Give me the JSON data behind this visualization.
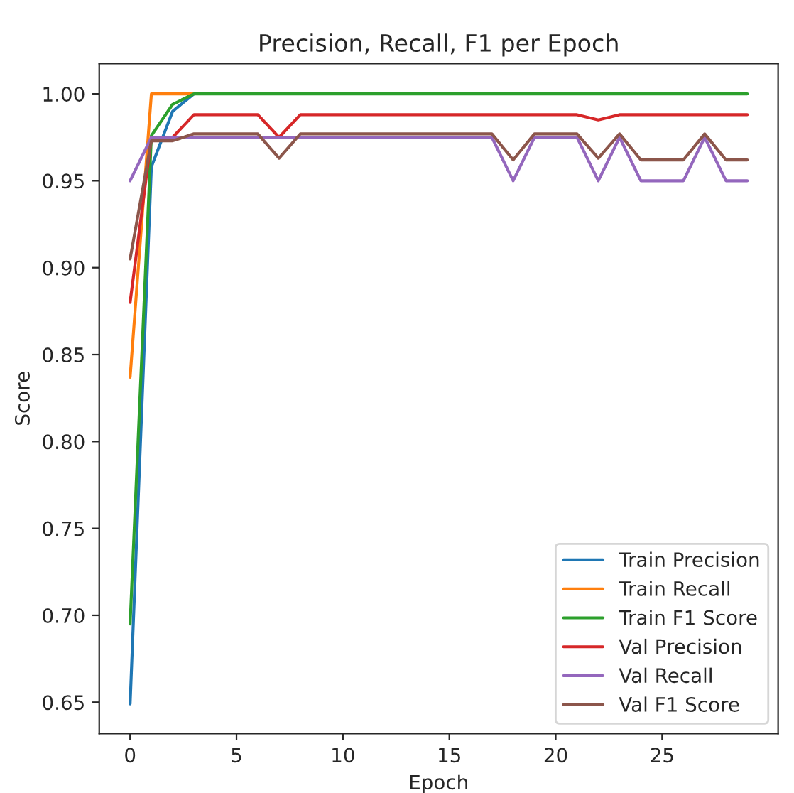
{
  "chart_data": {
    "type": "line",
    "title": "Precision, Recall, F1 per Epoch",
    "xlabel": "Epoch",
    "ylabel": "Score",
    "x": [
      0,
      1,
      2,
      3,
      4,
      5,
      6,
      7,
      8,
      9,
      10,
      11,
      12,
      13,
      14,
      15,
      16,
      17,
      18,
      19,
      20,
      21,
      22,
      23,
      24,
      25,
      26,
      27,
      28,
      29
    ],
    "series": [
      {
        "name": "Train Precision",
        "color": "#1f77b4",
        "values": [
          0.649,
          0.958,
          0.99,
          1.0,
          null,
          null,
          null,
          null,
          null,
          null,
          null,
          null,
          null,
          null,
          null,
          null,
          null,
          null,
          null,
          null,
          null,
          null,
          null,
          null,
          null,
          null,
          null,
          null,
          null,
          null
        ]
      },
      {
        "name": "Train Recall",
        "color": "#ff7f0e",
        "values": [
          0.837,
          1.0,
          1.0,
          1.0,
          null,
          null,
          null,
          null,
          null,
          null,
          null,
          null,
          null,
          null,
          null,
          null,
          null,
          null,
          null,
          null,
          null,
          null,
          null,
          null,
          null,
          null,
          null,
          null,
          null,
          null
        ]
      },
      {
        "name": "Train F1 Score",
        "color": "#2ca02c",
        "values": [
          0.695,
          0.976,
          0.994,
          1.0,
          1.0,
          1.0,
          1.0,
          1.0,
          1.0,
          1.0,
          1.0,
          1.0,
          1.0,
          1.0,
          1.0,
          1.0,
          1.0,
          1.0,
          1.0,
          1.0,
          1.0,
          1.0,
          1.0,
          1.0,
          1.0,
          1.0,
          1.0,
          1.0,
          1.0,
          1.0
        ]
      },
      {
        "name": "Val Precision",
        "color": "#d62728",
        "values": [
          0.88,
          0.975,
          0.975,
          0.988,
          0.988,
          0.988,
          0.988,
          0.975,
          0.988,
          0.988,
          0.988,
          0.988,
          0.988,
          0.988,
          0.988,
          0.988,
          0.988,
          0.988,
          0.988,
          0.988,
          0.988,
          0.988,
          0.985,
          0.988,
          0.988,
          0.988,
          0.988,
          0.988,
          0.988,
          0.988
        ]
      },
      {
        "name": "Val Recall",
        "color": "#9467bd",
        "values": [
          0.95,
          0.975,
          0.975,
          0.975,
          0.975,
          0.975,
          0.975,
          0.975,
          0.975,
          0.975,
          0.975,
          0.975,
          0.975,
          0.975,
          0.975,
          0.975,
          0.975,
          0.975,
          0.95,
          0.975,
          0.975,
          0.975,
          0.95,
          0.975,
          0.95,
          0.95,
          0.95,
          0.975,
          0.95,
          0.95
        ]
      },
      {
        "name": "Val F1 Score",
        "color": "#8c564b",
        "values": [
          0.905,
          0.973,
          0.973,
          0.977,
          0.977,
          0.977,
          0.977,
          0.963,
          0.977,
          0.977,
          0.977,
          0.977,
          0.977,
          0.977,
          0.977,
          0.977,
          0.977,
          0.977,
          0.962,
          0.977,
          0.977,
          0.977,
          0.963,
          0.977,
          0.962,
          0.962,
          0.962,
          0.977,
          0.962,
          0.962
        ]
      }
    ],
    "xlim": [
      -1.45,
      30.45
    ],
    "xticks": [
      0,
      5,
      10,
      15,
      20,
      25
    ],
    "ylim": [
      0.632,
      1.0175
    ],
    "yticks": [
      0.65,
      {
        "value": 0.7,
        "label": "0.70"
      },
      0.75,
      {
        "value": 0.8,
        "label": "0.80"
      },
      0.85,
      {
        "value": 0.9,
        "label": "0.90"
      },
      0.95,
      {
        "value": 1,
        "label": "1.00"
      }
    ],
    "grid": false,
    "legend": "lower right"
  }
}
